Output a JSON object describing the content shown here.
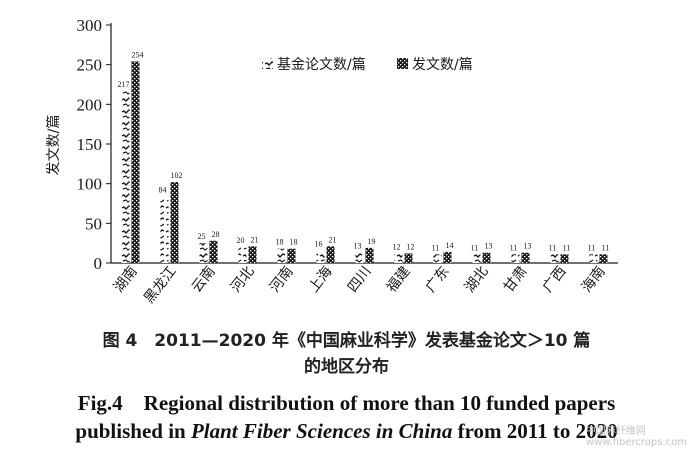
{
  "chart_data": {
    "type": "bar",
    "categories": [
      "湖南",
      "黑龙江",
      "云南",
      "河北",
      "河南",
      "上海",
      "四川",
      "福建",
      "广东",
      "湖北",
      "甘肃",
      "广西",
      "海南"
    ],
    "series": [
      {
        "name": "基金论文数/篇",
        "values": [
          217,
          84,
          25,
          20,
          18,
          16,
          13,
          12,
          11,
          11,
          11,
          11,
          11
        ],
        "pattern": "hatch"
      },
      {
        "name": "发文数/篇",
        "values": [
          254,
          102,
          28,
          21,
          18,
          21,
          19,
          12,
          14,
          13,
          13,
          11,
          11
        ],
        "pattern": "checker"
      }
    ],
    "ylabel": "发文数/篇",
    "xlabel": "",
    "ylim": [
      0,
      300
    ],
    "yticks": [
      "0",
      "50",
      "100",
      "150",
      "200",
      "250",
      "300"
    ],
    "legend_position": "top-right",
    "grid": false,
    "colors": {
      "bar_dark": "#1a1a1a",
      "text": "#1a1a1a"
    }
  },
  "caption": {
    "cn_line1": "图 4　2011—2020 年《中国麻业科学》发表基金论文＞10 篇",
    "cn_line2": "的地区分布",
    "en_line1": "Fig.4　Regional distribution of more than 10 funded papers",
    "en_line2_pre": "published in ",
    "en_line2_italic": "Plant Fiber Sciences in China",
    "en_line2_post": " from 2011 to 2020"
  },
  "watermark": {
    "line1": "中国麻纤维网",
    "line2": "www.fibercrops.com"
  }
}
